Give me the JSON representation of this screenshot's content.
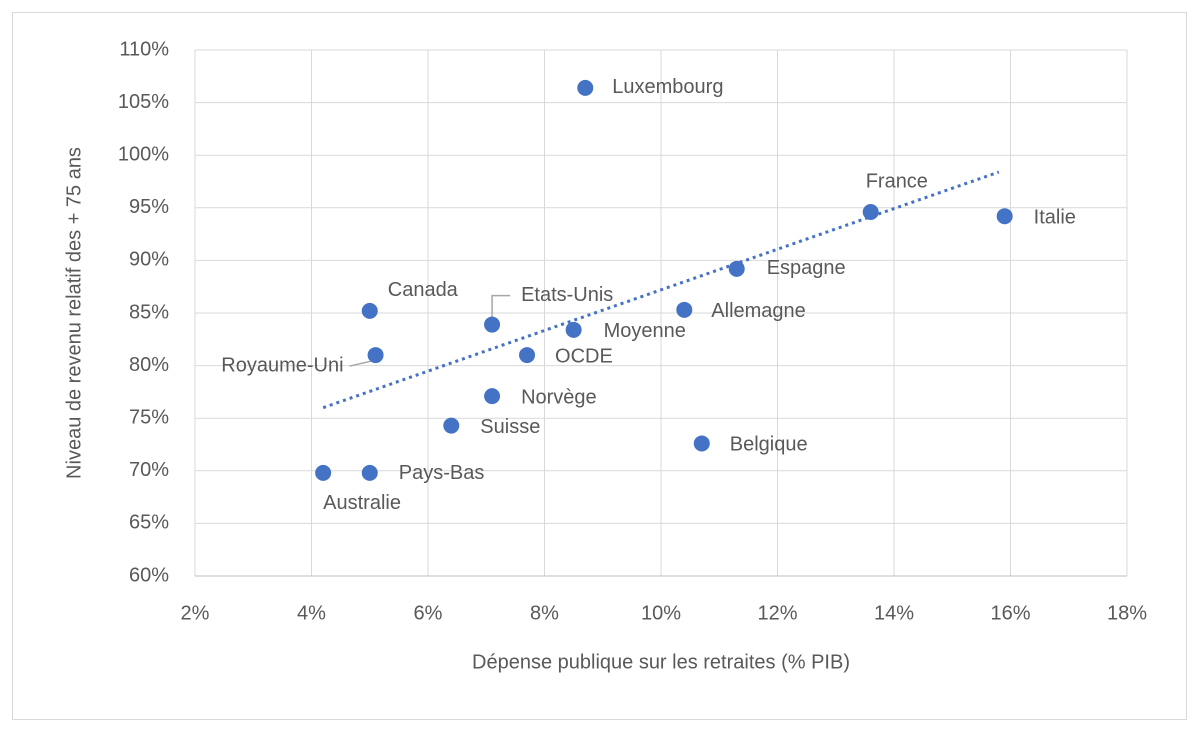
{
  "chart_data": {
    "type": "scatter",
    "x_label": "Dépense publique sur les retraites (% PIB)",
    "y_label": "Niveau de revenu relatif des + 75 ans",
    "point_labels": [
      "Luxembourg",
      "France",
      "Italie",
      "Espagne",
      "Allemagne",
      "Canada",
      "Etats-Unis",
      "Moyenne",
      "Royaume-Uni",
      "OCDE",
      "Norvège",
      "Suisse",
      "Belgique",
      "Australie",
      "Pays-Bas"
    ],
    "x": [
      8.7,
      13.6,
      15.9,
      11.3,
      10.4,
      5.0,
      7.1,
      8.5,
      5.1,
      7.7,
      7.1,
      6.4,
      10.7,
      4.2,
      5.0
    ],
    "values": [
      106.4,
      94.6,
      94.2,
      89.2,
      85.3,
      85.2,
      83.9,
      83.4,
      81.0,
      81.0,
      77.1,
      74.3,
      72.6,
      69.8,
      69.8
    ],
    "color": "#4472c4",
    "trendline": {
      "x": [
        4.2,
        15.8
      ],
      "values": [
        76.0,
        98.4
      ]
    },
    "xlim": [
      2,
      18
    ],
    "xticks": [
      {
        "value": 2,
        "label": "2%"
      },
      {
        "value": 4,
        "label": "4%"
      },
      {
        "value": 6,
        "label": "6%"
      },
      {
        "value": 8,
        "label": "8%"
      },
      {
        "value": 10,
        "label": "10%"
      },
      {
        "value": 12,
        "label": "12%"
      },
      {
        "value": 14,
        "label": "14%"
      },
      {
        "value": 16,
        "label": "16%"
      },
      {
        "value": 18,
        "label": "18%"
      }
    ],
    "ylim": [
      60,
      110
    ],
    "yticks": [
      {
        "value": 60,
        "label": "60%"
      },
      {
        "value": 65,
        "label": "65%"
      },
      {
        "value": 70,
        "label": "70%"
      },
      {
        "value": 75,
        "label": "75%"
      },
      {
        "value": 80,
        "label": "80%"
      },
      {
        "value": 85,
        "label": "85%"
      },
      {
        "value": 90,
        "label": "90%"
      },
      {
        "value": 95,
        "label": "95%"
      },
      {
        "value": 100,
        "label": "100%"
      },
      {
        "value": 105,
        "label": "105%"
      },
      {
        "value": 110,
        "label": "110%"
      }
    ],
    "grid": true
  }
}
